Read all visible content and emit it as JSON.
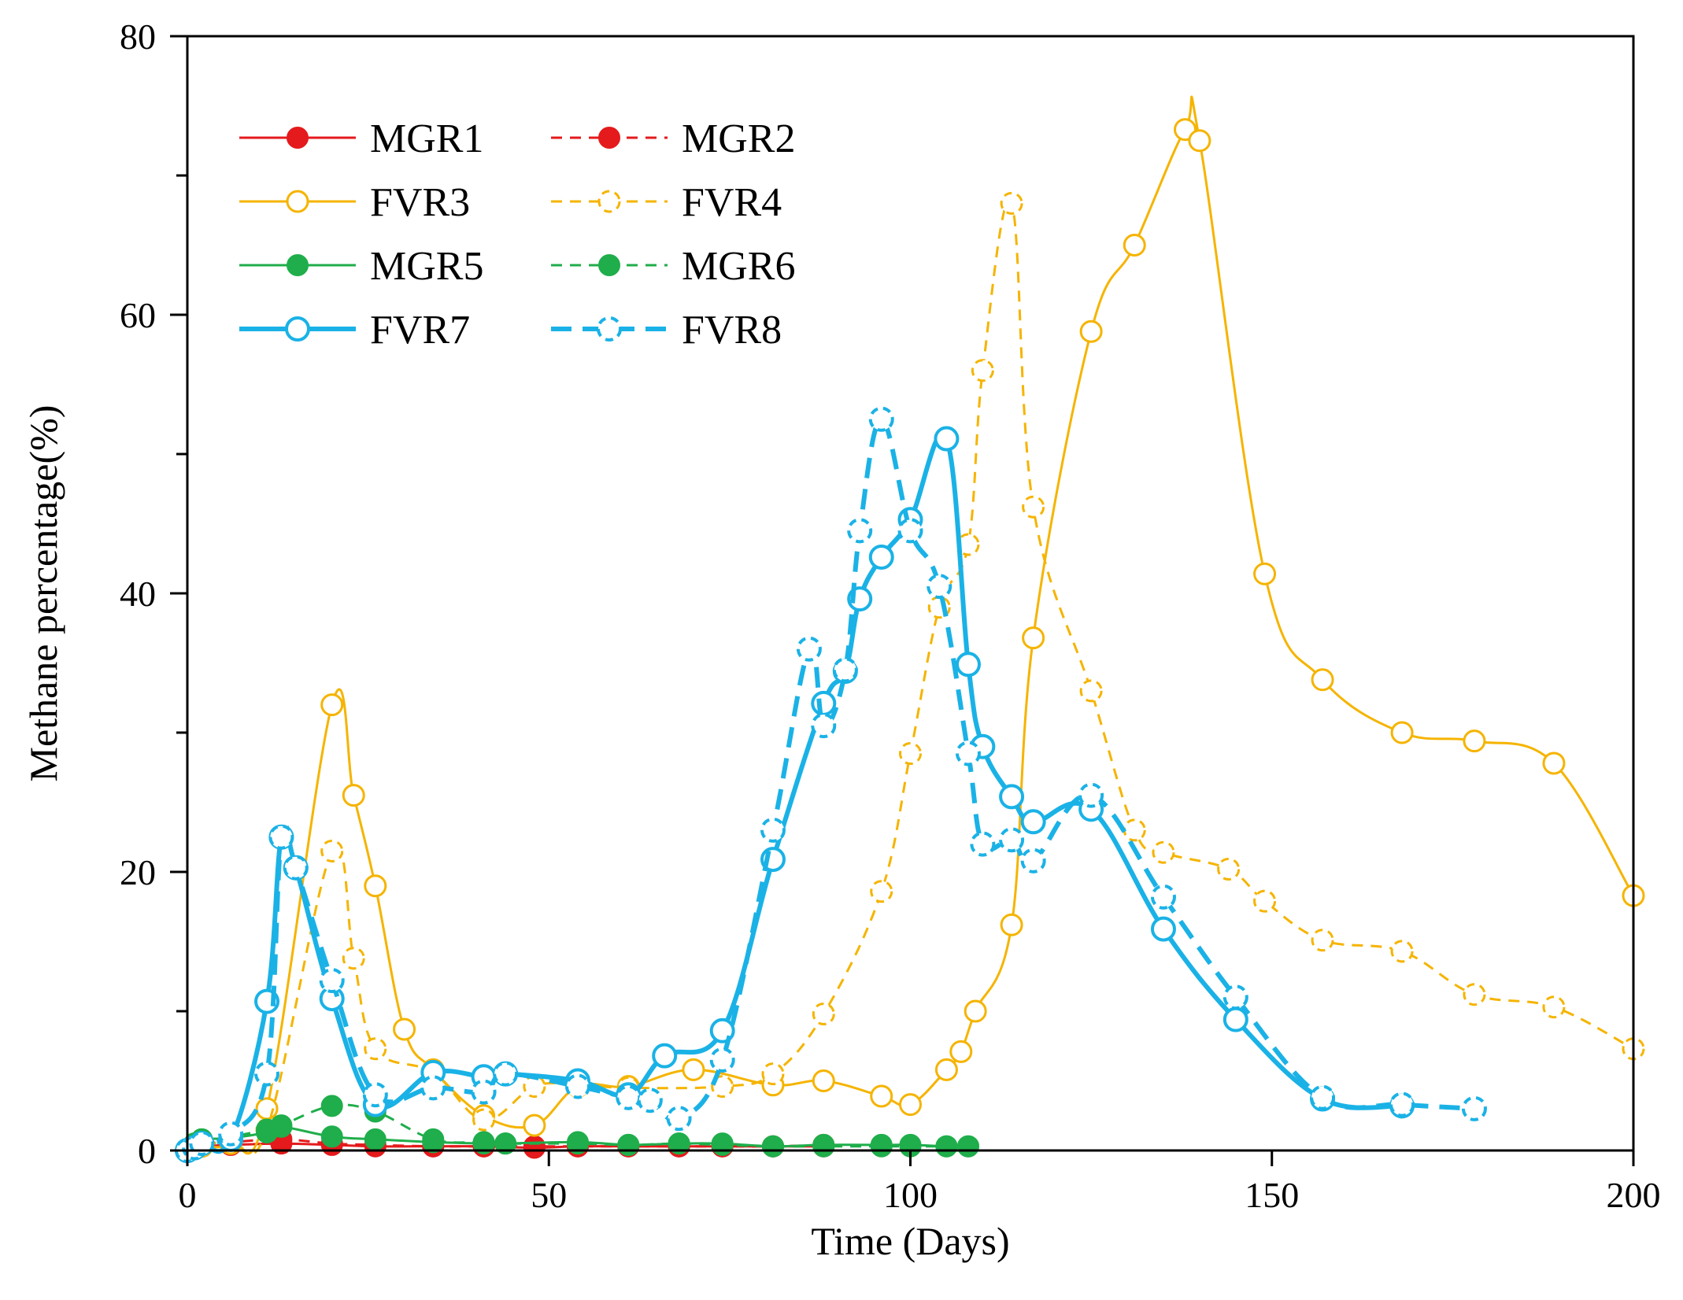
{
  "chart_data": {
    "type": "line",
    "xlabel": "Time (Days)",
    "ylabel": "Methane percentage(%)",
    "xlim": [
      0,
      200
    ],
    "ylim": [
      0,
      80
    ],
    "xticks": [
      0,
      50,
      100,
      150,
      200
    ],
    "yticks": [
      0,
      20,
      40,
      60,
      80
    ],
    "grid": false,
    "legend_position": "top-left",
    "series": [
      {
        "name": "MGR1",
        "color": "#e41a1c",
        "dash": "solid",
        "marker": "filled-circle",
        "x": [
          0,
          1,
          2,
          6,
          13,
          20,
          26,
          34,
          41,
          48,
          54,
          61,
          68,
          74,
          81,
          88
        ],
        "y": [
          0,
          0.3,
          0.3,
          0.4,
          0.5,
          0.4,
          0.3,
          0.3,
          0.3,
          0.2,
          0.3,
          0.3,
          0.3,
          0.3,
          0.3,
          0.3
        ]
      },
      {
        "name": "MGR2",
        "color": "#e41a1c",
        "dash": "dashed",
        "marker": "filled-circle",
        "x": [
          0,
          1,
          2,
          6,
          13,
          20,
          26,
          34,
          41,
          48,
          54,
          61,
          68,
          74,
          81,
          88
        ],
        "y": [
          0,
          0.3,
          0.5,
          0.6,
          0.8,
          0.5,
          0.4,
          0.3,
          0.3,
          0.3,
          0.3,
          0.3,
          0.3,
          0.3,
          0.3,
          0.4
        ]
      },
      {
        "name": "FVR3",
        "color": "#f5b400",
        "dash": "solid",
        "marker": "open-circle",
        "x": [
          0,
          1,
          2,
          6,
          11,
          20,
          23,
          26,
          30,
          34,
          41,
          48,
          54,
          61,
          70,
          81,
          88,
          96,
          100,
          105,
          107,
          109,
          114,
          117,
          125,
          131,
          138,
          140,
          149,
          157,
          168,
          178,
          189,
          200
        ],
        "y": [
          0,
          0.2,
          0.3,
          0.5,
          3,
          32,
          25.5,
          19,
          8.7,
          5.8,
          2.5,
          1.8,
          4.6,
          4.6,
          5.8,
          4.7,
          5,
          3.9,
          3.3,
          5.8,
          7.1,
          10,
          16.2,
          36.8,
          58.8,
          65,
          73.3,
          72.5,
          41.4,
          33.8,
          30,
          29.4,
          27.8,
          18.3
        ]
      },
      {
        "name": "FVR4",
        "color": "#f5b400",
        "dash": "dashed",
        "marker": "open-circle",
        "x": [
          0,
          1,
          2,
          6,
          11,
          20,
          23,
          26,
          34,
          41,
          48,
          54,
          61,
          74,
          81,
          88,
          96,
          100,
          104,
          108,
          110,
          114,
          117,
          125,
          131,
          135,
          144,
          149,
          157,
          168,
          178,
          189,
          200
        ],
        "y": [
          0,
          0.2,
          0.3,
          0.8,
          1.5,
          21.5,
          13.8,
          7.3,
          5.6,
          2.2,
          4.6,
          4.7,
          4.5,
          4.6,
          5.5,
          9.8,
          18.6,
          28.5,
          39,
          43.5,
          56,
          68,
          46.2,
          33,
          23,
          21.4,
          20.2,
          17.9,
          15.1,
          14.3,
          11.2,
          10.3,
          7.3
        ]
      },
      {
        "name": "MGR5",
        "color": "#1fae4b",
        "dash": "solid",
        "marker": "filled-circle",
        "x": [
          0,
          1,
          2,
          6,
          11,
          13,
          20,
          26,
          34,
          41,
          44,
          54,
          61,
          68,
          74,
          81,
          88,
          96,
          100,
          105,
          108
        ],
        "y": [
          0,
          0.5,
          0.8,
          0.9,
          1.3,
          1.7,
          1,
          0.8,
          0.6,
          0.5,
          0.5,
          0.6,
          0.4,
          0.5,
          0.5,
          0.3,
          0.4,
          0.4,
          0.4,
          0.3,
          0.3
        ]
      },
      {
        "name": "MGR6",
        "color": "#1fae4b",
        "dash": "dashed",
        "marker": "filled-circle",
        "x": [
          0,
          1,
          2,
          6,
          11,
          13,
          20,
          26,
          34,
          41,
          44,
          54,
          61,
          68,
          74,
          81,
          88,
          96,
          100,
          105,
          108
        ],
        "y": [
          0,
          0.5,
          0.8,
          1,
          1.5,
          1.8,
          3.2,
          2.8,
          0.8,
          0.6,
          0.5,
          0.5,
          0.4,
          0.5,
          0.4,
          0.3,
          0.3,
          0.3,
          0.3,
          0.3,
          0.3
        ]
      },
      {
        "name": "FVR7",
        "color": "#1ab2e6",
        "dash": "solid",
        "marker": "open-circle",
        "x": [
          0,
          1,
          2,
          6,
          11,
          13,
          15,
          20,
          26,
          34,
          41,
          44,
          54,
          61,
          66,
          74,
          81,
          88,
          91,
          93,
          96,
          100,
          105,
          108,
          110,
          114,
          117,
          125,
          135,
          145,
          157,
          168
        ],
        "y": [
          0,
          0.2,
          0.5,
          0.8,
          10.7,
          22.5,
          20.3,
          10.9,
          3.3,
          5.6,
          5.3,
          5.5,
          5,
          4,
          6.8,
          8.6,
          20.9,
          32.1,
          34.4,
          39.6,
          42.6,
          45.3,
          51.1,
          34.9,
          29,
          25.4,
          23.6,
          24.5,
          15.9,
          9.4,
          3.7,
          3.2
        ]
      },
      {
        "name": "FVR8",
        "color": "#1ab2e6",
        "dash": "dashed",
        "marker": "open-circle",
        "x": [
          0,
          1,
          2,
          6,
          11,
          13,
          15,
          20,
          26,
          34,
          41,
          44,
          54,
          61,
          64,
          68,
          74,
          81,
          86,
          88,
          91,
          93,
          96,
          100,
          104,
          108,
          110,
          114,
          117,
          125,
          135,
          145,
          157,
          168,
          178
        ],
        "y": [
          0,
          0.2,
          0.5,
          1.2,
          5.5,
          22.5,
          20.3,
          12.2,
          4,
          4.5,
          4.2,
          5.5,
          4.6,
          3.8,
          3.6,
          2.3,
          6.5,
          23,
          36,
          30.5,
          34.5,
          44.5,
          52.5,
          44.5,
          40.5,
          28.5,
          22,
          22.3,
          20.8,
          25.5,
          18.2,
          11,
          3.8,
          3.3,
          3
        ]
      }
    ]
  }
}
